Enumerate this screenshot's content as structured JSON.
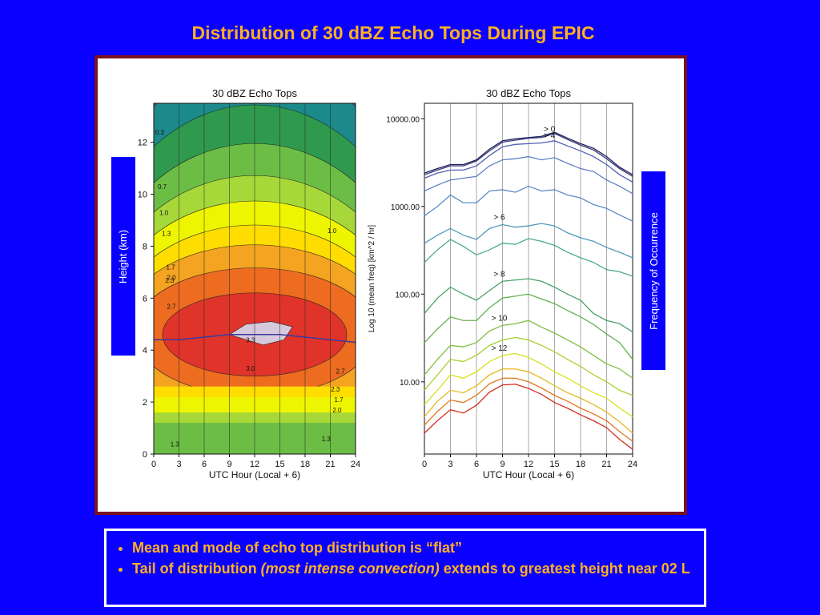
{
  "slide": {
    "title": "Distribution of 30 dBZ Echo Tops During EPIC"
  },
  "side_labels": {
    "left": "Height (km)",
    "right": "Frequency of Occurrence"
  },
  "bullets": {
    "item1": "Mean and mode of echo top distribution is “flat”",
    "item2_pre": "Tail of distribution ",
    "item2_em": "(most intense convection)",
    "item2_post": " extends to greatest height near 02 L"
  },
  "colors": {
    "background": "#0a00ff",
    "title": "#ffb020",
    "frame": "#7a1020"
  },
  "chart_data": [
    {
      "type": "heatmap",
      "title": "30 dBZ Echo Tops",
      "xlabel": "UTC Hour (Local + 6)",
      "ylabel": "",
      "xlim": [
        0,
        24
      ],
      "ylim": [
        0,
        13.5
      ],
      "x_ticks": [
        "0",
        "3",
        "6",
        "9",
        "12",
        "15",
        "18",
        "21",
        "24"
      ],
      "y_ticks": [
        "0",
        "2",
        "4",
        "6",
        "8",
        "10",
        "12"
      ],
      "contour_labels": [
        "0.3",
        "0.7",
        "1.0",
        "1.3",
        "1.7",
        "2.0",
        "2.3",
        "2.7",
        "3.0",
        "3.3"
      ],
      "x": [
        0,
        3,
        6,
        9,
        12,
        15,
        18,
        21,
        24
      ],
      "mean_height_line": [
        4.4,
        4.4,
        4.5,
        4.6,
        4.6,
        4.6,
        4.5,
        4.4,
        4.3
      ],
      "band_levels": [
        {
          "level": "max",
          "color": "#d7c9dc"
        },
        {
          "level": "3.3",
          "color": "#e0342a"
        },
        {
          "level": "3.0",
          "color": "#ed6c20"
        },
        {
          "level": "2.7",
          "color": "#f4a420"
        },
        {
          "level": "2.3",
          "color": "#ffdd00"
        },
        {
          "level": "2.0",
          "color": "#eef500"
        },
        {
          "level": "1.7",
          "color": "#a6d83a"
        },
        {
          "level": "1.3",
          "color": "#6cbd45"
        },
        {
          "level": "1.0",
          "color": "#2f9a4e"
        },
        {
          "level": "0.7",
          "color": "#1c8a8a"
        },
        {
          "level": "0.3",
          "color": "#3a63a8"
        },
        {
          "level": "0",
          "color": "#5046a0"
        }
      ]
    },
    {
      "type": "line",
      "title": "30 dBZ Echo Tops",
      "xlabel": "UTC Hour (Local + 6)",
      "ylabel": "Log 10 (mean freq) [km^2 / hr]",
      "y_scale": "log",
      "xlim": [
        0,
        24
      ],
      "ylim": [
        1.5,
        15000
      ],
      "x_ticks": [
        "0",
        "3",
        "6",
        "9",
        "12",
        "15",
        "18",
        "21",
        "24"
      ],
      "y_ticks": [
        "10.00",
        "100.00",
        "1000.00",
        "10000.00"
      ],
      "x": [
        0,
        1.5,
        3,
        4.5,
        6,
        7.5,
        9,
        10.5,
        12,
        13.5,
        15,
        16.5,
        18,
        19.5,
        21,
        22.5,
        24
      ],
      "series": [
        {
          "name": "> 0",
          "color": "#20205a",
          "values": [
            2400,
            2700,
            3000,
            3000,
            3400,
            4500,
            5600,
            5900,
            6100,
            6300,
            7000,
            6000,
            5200,
            4600,
            3700,
            2800,
            2300
          ]
        },
        {
          "name": "",
          "color": "#3a3a80",
          "values": [
            2300,
            2600,
            2900,
            2900,
            3300,
            4300,
            5400,
            5700,
            6000,
            6100,
            6800,
            5800,
            5000,
            4400,
            3500,
            2700,
            2200
          ]
        },
        {
          "name": "> 4",
          "color": "#5060b0",
          "values": [
            2100,
            2400,
            2600,
            2600,
            2900,
            3800,
            4800,
            5100,
            5200,
            5300,
            5600,
            4900,
            4300,
            3700,
            3000,
            2300,
            1900
          ]
        },
        {
          "name": "",
          "color": "#6080c8",
          "values": [
            1500,
            1750,
            2000,
            2100,
            2200,
            2900,
            3400,
            3500,
            3700,
            3400,
            3600,
            3100,
            2700,
            2500,
            2000,
            1700,
            1400
          ]
        },
        {
          "name": "",
          "color": "#5a8cc8",
          "values": [
            780,
            1000,
            1350,
            1100,
            1100,
            1500,
            1550,
            1450,
            1700,
            1500,
            1550,
            1350,
            1250,
            1050,
            950,
            800,
            680
          ]
        },
        {
          "name": "> 6",
          "color": "#4f9cb8",
          "values": [
            380,
            470,
            560,
            470,
            420,
            560,
            620,
            580,
            600,
            640,
            600,
            500,
            440,
            400,
            340,
            300,
            260
          ]
        },
        {
          "name": "",
          "color": "#4caa8c",
          "values": [
            230,
            320,
            420,
            350,
            280,
            320,
            380,
            370,
            430,
            400,
            360,
            300,
            260,
            230,
            190,
            180,
            160
          ]
        },
        {
          "name": "> 8",
          "color": "#4aa068",
          "values": [
            60,
            90,
            120,
            100,
            85,
            110,
            140,
            145,
            150,
            140,
            120,
            100,
            85,
            60,
            50,
            46,
            37
          ]
        },
        {
          "name": "",
          "color": "#66b050",
          "values": [
            28,
            40,
            55,
            50,
            50,
            70,
            90,
            95,
            100,
            88,
            78,
            65,
            55,
            45,
            35,
            28,
            18
          ]
        },
        {
          "name": "> 10",
          "color": "#80be40",
          "values": [
            12,
            18,
            26,
            25,
            28,
            38,
            44,
            46,
            50,
            42,
            36,
            30,
            25,
            20,
            16,
            14,
            11
          ]
        },
        {
          "name": "",
          "color": "#a8d030",
          "values": [
            8,
            12,
            18,
            17,
            20,
            26,
            30,
            32,
            30,
            26,
            22,
            18,
            15,
            12,
            10,
            8,
            7
          ]
        },
        {
          "name": "> 12",
          "color": "#d8e020",
          "values": [
            5.5,
            8,
            12,
            11,
            13,
            17,
            20,
            21,
            19,
            16,
            13,
            11,
            9,
            7.5,
            6.5,
            5,
            4
          ]
        },
        {
          "name": "",
          "color": "#e8b820",
          "values": [
            4,
            6,
            8,
            7.5,
            9,
            12,
            14,
            14,
            13,
            11,
            9,
            7.5,
            6.5,
            5.5,
            4.5,
            3.5,
            2.6
          ]
        },
        {
          "name": "",
          "color": "#e07820",
          "values": [
            3.2,
            4.6,
            6.2,
            5.8,
            7,
            9.5,
            11,
            11,
            10,
            8.5,
            7,
            6,
            5,
            4.3,
            3.6,
            2.7,
            2.1
          ]
        },
        {
          "name": "",
          "color": "#d03020",
          "values": [
            2.6,
            3.6,
            4.8,
            4.4,
            5.4,
            7.6,
            9.2,
            9.4,
            8.4,
            7.2,
            5.8,
            5,
            4.2,
            3.6,
            3,
            2.2,
            1.7
          ]
        }
      ]
    }
  ]
}
